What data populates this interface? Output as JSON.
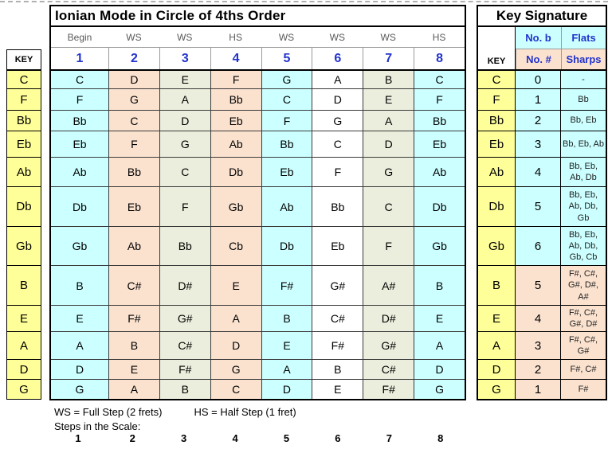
{
  "colors": {
    "yellow": "#FFFF99",
    "cyan": "#CCFFFF",
    "peach": "#FBE2CF",
    "green": "#EBEEDC",
    "blue": "#2233CC"
  },
  "main_table": {
    "title": "Ionian Mode in Circle of 4ths Order",
    "key_header": "KEY",
    "step_labels": [
      "Begin",
      "WS",
      "WS",
      "HS",
      "WS",
      "WS",
      "WS",
      "HS"
    ],
    "degree_numbers": [
      "1",
      "2",
      "3",
      "4",
      "5",
      "6",
      "7",
      "8"
    ],
    "rows": [
      {
        "key": "C",
        "notes": [
          "C",
          "D",
          "E",
          "F",
          "G",
          "A",
          "B",
          "C"
        ]
      },
      {
        "key": "F",
        "notes": [
          "F",
          "G",
          "A",
          "Bb",
          "C",
          "D",
          "E",
          "F"
        ]
      },
      {
        "key": "Bb",
        "notes": [
          "Bb",
          "C",
          "D",
          "Eb",
          "F",
          "G",
          "A",
          "Bb"
        ]
      },
      {
        "key": "Eb",
        "notes": [
          "Eb",
          "F",
          "G",
          "Ab",
          "Bb",
          "C",
          "D",
          "Eb"
        ]
      },
      {
        "key": "Ab",
        "notes": [
          "Ab",
          "Bb",
          "C",
          "Db",
          "Eb",
          "F",
          "G",
          "Ab"
        ]
      },
      {
        "key": "Db",
        "notes": [
          "Db",
          "Eb",
          "F",
          "Gb",
          "Ab",
          "Bb",
          "C",
          "Db"
        ]
      },
      {
        "key": "Gb",
        "notes": [
          "Gb",
          "Ab",
          "Bb",
          "Cb",
          "Db",
          "Eb",
          "F",
          "Gb"
        ]
      },
      {
        "key": "B",
        "notes": [
          "B",
          "C#",
          "D#",
          "E",
          "F#",
          "G#",
          "A#",
          "B"
        ]
      },
      {
        "key": "E",
        "notes": [
          "E",
          "F#",
          "G#",
          "A",
          "B",
          "C#",
          "D#",
          "E"
        ]
      },
      {
        "key": "A",
        "notes": [
          "A",
          "B",
          "C#",
          "D",
          "E",
          "F#",
          "G#",
          "A"
        ]
      },
      {
        "key": "D",
        "notes": [
          "D",
          "E",
          "F#",
          "G",
          "A",
          "B",
          "C#",
          "D"
        ]
      },
      {
        "key": "G",
        "notes": [
          "G",
          "A",
          "B",
          "C",
          "D",
          "E",
          "F#",
          "G"
        ]
      }
    ]
  },
  "key_signature_table": {
    "title": "Key Signature",
    "key_header": "KEY",
    "flats_count_header": "No. b",
    "flats_header": "Flats",
    "sharps_count_header": "No. #",
    "sharps_header": "Sharps",
    "rows": [
      {
        "key": "C",
        "count": "0",
        "accidentals": "-",
        "type": "flats"
      },
      {
        "key": "F",
        "count": "1",
        "accidentals": "Bb",
        "type": "flats"
      },
      {
        "key": "Bb",
        "count": "2",
        "accidentals": "Bb, Eb",
        "type": "flats"
      },
      {
        "key": "Eb",
        "count": "3",
        "accidentals": "Bb, Eb, Ab",
        "type": "flats"
      },
      {
        "key": "Ab",
        "count": "4",
        "accidentals": "Bb, Eb, Ab, Db",
        "type": "flats"
      },
      {
        "key": "Db",
        "count": "5",
        "accidentals": "Bb, Eb, Ab, Db, Gb",
        "type": "flats"
      },
      {
        "key": "Gb",
        "count": "6",
        "accidentals": "Bb, Eb, Ab, Db, Gb, Cb",
        "type": "flats"
      },
      {
        "key": "B",
        "count": "5",
        "accidentals": "F#, C#, G#, D#, A#",
        "type": "sharps"
      },
      {
        "key": "E",
        "count": "4",
        "accidentals": "F#, C#, G#, D#",
        "type": "sharps"
      },
      {
        "key": "A",
        "count": "3",
        "accidentals": "F#, C#, G#",
        "type": "sharps"
      },
      {
        "key": "D",
        "count": "2",
        "accidentals": "F#, C#",
        "type": "sharps"
      },
      {
        "key": "G",
        "count": "1",
        "accidentals": "F#",
        "type": "sharps"
      }
    ]
  },
  "footnotes": {
    "ws_definition": "WS = Full Step (2 frets)",
    "hs_definition": "HS = Half Step (1 fret)",
    "steps_label": "Steps in the Scale:",
    "step_numbers": [
      "1",
      "2",
      "3",
      "4",
      "5",
      "6",
      "7",
      "8"
    ]
  }
}
